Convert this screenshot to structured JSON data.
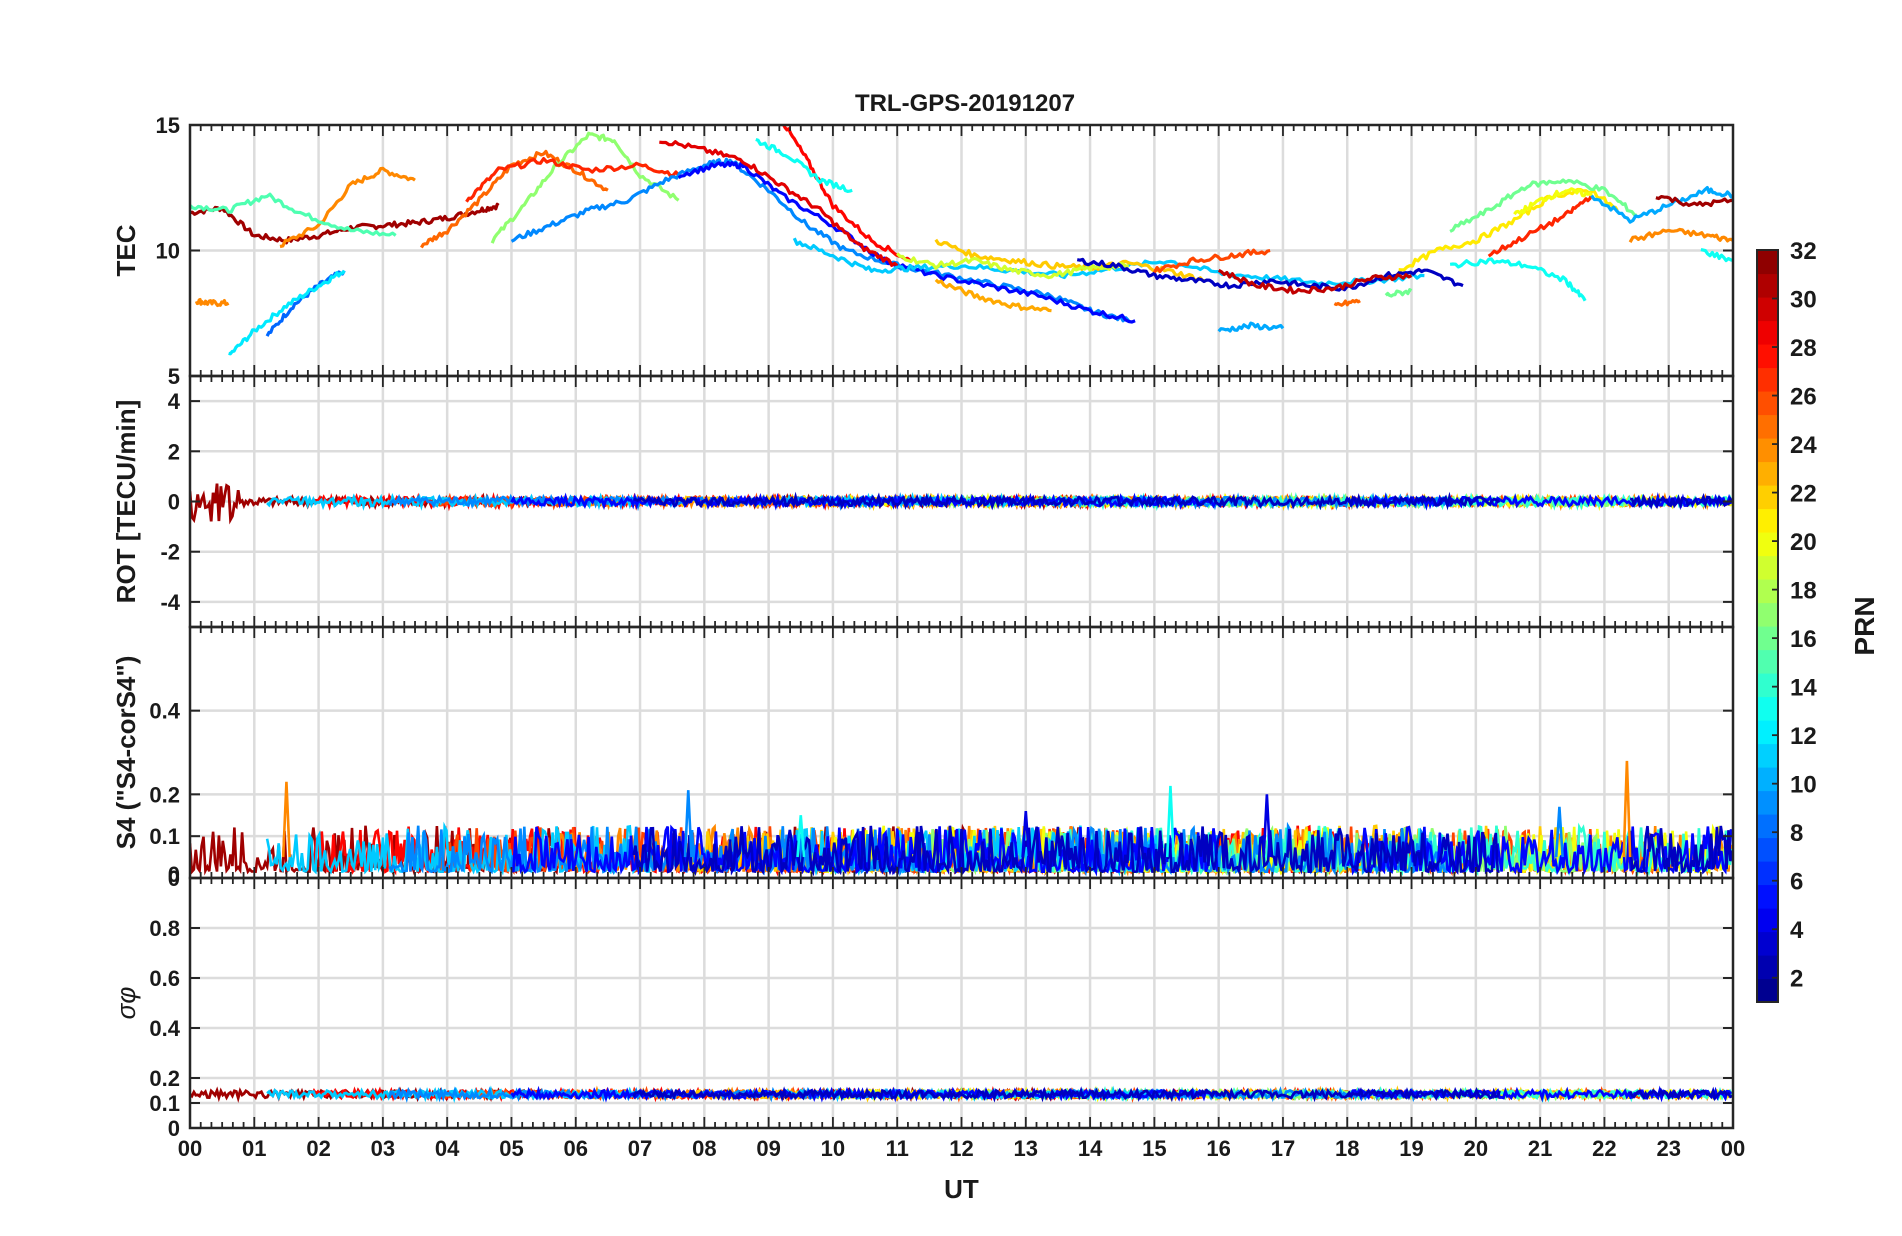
{
  "figure": {
    "title": "TRL-GPS-20191207"
  },
  "chart_data": [
    {
      "type": "line",
      "panel": "tec",
      "title": "TRL-GPS-20191207",
      "xlabel": "",
      "ylabel": "TEC",
      "xlim": [
        0,
        24
      ],
      "ylim": [
        5,
        15
      ],
      "yticks": [
        "5",
        "10",
        "15"
      ],
      "grid": true,
      "series": [
        {
          "name": "PRN 31",
          "prn": 31,
          "x": [
            0,
            0.5,
            1,
            1.5,
            2,
            2.5,
            3,
            3.5,
            4,
            4.5,
            4.8
          ],
          "y": [
            11.5,
            11.7,
            10.6,
            10.4,
            10.6,
            10.9,
            11.0,
            11.1,
            11.3,
            11.6,
            11.8
          ]
        },
        {
          "name": "PRN 8",
          "prn": 8,
          "x": [
            1.2,
            1.6,
            2,
            2.4
          ],
          "y": [
            6.6,
            7.8,
            8.6,
            9.2
          ]
        },
        {
          "name": "PRN 12",
          "prn": 12,
          "x": [
            0.6,
            1.0,
            1.5,
            2.0,
            2.4
          ],
          "y": [
            5.8,
            6.8,
            7.8,
            8.6,
            9.2
          ]
        },
        {
          "name": "PRN 24",
          "prn": 24,
          "x": [
            0.1,
            0.3,
            0.6
          ],
          "y": [
            8.0,
            7.9,
            7.9
          ]
        },
        {
          "name": "PRN 24b",
          "prn": 24,
          "x": [
            1.4,
            2,
            2.5,
            3,
            3.5
          ],
          "y": [
            10.2,
            11.0,
            12.6,
            13.2,
            12.8
          ]
        },
        {
          "name": "PRN 15",
          "prn": 15,
          "x": [
            0,
            0.6,
            1.2,
            1.8,
            2.5,
            3.2
          ],
          "y": [
            11.8,
            11.6,
            12.2,
            11.4,
            10.8,
            10.6
          ]
        },
        {
          "name": "PRN 25",
          "prn": 25,
          "x": [
            3.6,
            4,
            4.5,
            5,
            5.5,
            6.0,
            6.5
          ],
          "y": [
            10.2,
            10.8,
            12.0,
            13.4,
            13.9,
            13.2,
            12.4
          ]
        },
        {
          "name": "PRN 17",
          "prn": 17,
          "x": [
            4.7,
            5.2,
            5.7,
            6.2,
            6.6,
            7.0,
            7.6
          ],
          "y": [
            10.4,
            11.8,
            13.4,
            14.6,
            14.4,
            13.0,
            12.0
          ]
        },
        {
          "name": "PRN 27",
          "prn": 27,
          "x": [
            4.3,
            4.8,
            5.5,
            6.2,
            7.0,
            7.6
          ],
          "y": [
            12.0,
            13.2,
            13.6,
            13.2,
            13.4,
            13.0
          ]
        },
        {
          "name": "PRN 9",
          "prn": 9,
          "x": [
            5.0,
            5.6,
            6.2,
            6.8,
            7.4,
            8.0,
            8.4,
            9.0,
            9.6,
            10.2,
            11,
            11.8,
            12.6,
            13.4,
            14.0,
            14.6
          ],
          "y": [
            10.4,
            11.0,
            11.6,
            12.0,
            12.8,
            13.4,
            13.6,
            12.4,
            11.0,
            10.0,
            9.4,
            9.0,
            8.6,
            8.2,
            7.6,
            7.2
          ]
        },
        {
          "name": "PRN 5",
          "prn": 5,
          "x": [
            7.6,
            8.2,
            8.6,
            9.2,
            10,
            10.8,
            11.6,
            12.4,
            13.2,
            14.0,
            14.7
          ],
          "y": [
            13.0,
            13.4,
            13.4,
            12.2,
            11.0,
            9.6,
            9.0,
            8.6,
            8.2,
            7.6,
            7.2
          ]
        },
        {
          "name": "PRN 29",
          "prn": 29,
          "x": [
            7.3,
            8.0,
            8.6,
            9.2,
            9.8,
            10.4,
            11.0
          ],
          "y": [
            14.4,
            14.0,
            13.6,
            12.6,
            11.6,
            10.2,
            9.4
          ]
        },
        {
          "name": "PRN 28",
          "prn": 28,
          "x": [
            9.2,
            9.6,
            10.0,
            10.6,
            11.2
          ],
          "y": [
            15.2,
            13.6,
            11.8,
            10.4,
            9.6
          ]
        },
        {
          "name": "PRN 13",
          "prn": 13,
          "x": [
            8.8,
            9.3,
            9.8,
            10.3
          ],
          "y": [
            14.4,
            13.8,
            12.8,
            12.4
          ]
        },
        {
          "name": "PRN 11",
          "prn": 11,
          "x": [
            9.4,
            10,
            10.6,
            11.2,
            12,
            12.8,
            13.6,
            14.4,
            15.2,
            16,
            16.8,
            17.6,
            18.4,
            19.2
          ],
          "y": [
            10.4,
            9.8,
            9.2,
            9.3,
            9.4,
            9.2,
            9.0,
            9.3,
            9.6,
            9.1,
            8.9,
            8.7,
            8.8,
            9.0
          ]
        },
        {
          "name": "PRN 22",
          "prn": 22,
          "x": [
            11.6,
            12.2,
            12.8,
            13.4,
            14.0,
            14.6,
            15.2,
            15.8
          ],
          "y": [
            10.4,
            9.8,
            9.6,
            9.4,
            9.3,
            9.5,
            9.2,
            8.8
          ]
        },
        {
          "name": "PRN 23",
          "prn": 23,
          "x": [
            11.6,
            12.2,
            12.8,
            13.4
          ],
          "y": [
            8.8,
            8.2,
            7.8,
            7.6
          ]
        },
        {
          "name": "PRN 19",
          "prn": 19,
          "x": [
            11,
            11.6,
            12.2,
            12.8,
            13.4,
            14.0,
            14.6
          ],
          "y": [
            9.8,
            9.4,
            9.6,
            9.2,
            9.0,
            9.3,
            9.4
          ]
        },
        {
          "name": "PRN 3",
          "prn": 3,
          "x": [
            13.8,
            14.4,
            15.0,
            15.6,
            16.2,
            16.8,
            17.4,
            18.0,
            18.6,
            19.2,
            19.8
          ],
          "y": [
            9.6,
            9.4,
            9.0,
            8.8,
            8.6,
            8.8,
            8.6,
            8.5,
            9.0,
            9.2,
            8.6
          ]
        },
        {
          "name": "PRN 26",
          "prn": 26,
          "x": [
            15.0,
            15.6,
            16.2,
            16.8
          ],
          "y": [
            9.2,
            9.6,
            9.8,
            10.0
          ]
        },
        {
          "name": "PRN 30",
          "prn": 30,
          "x": [
            16.0,
            16.6,
            17.2,
            17.8,
            18.4,
            19.0
          ],
          "y": [
            9.2,
            8.6,
            8.4,
            8.5,
            8.9,
            9.0
          ]
        },
        {
          "name": "PRN 10",
          "prn": 10,
          "x": [
            16.0,
            16.5,
            17.0
          ],
          "y": [
            6.8,
            7.0,
            6.9
          ]
        },
        {
          "name": "PRN 25b",
          "prn": 25,
          "x": [
            17.8,
            18.2
          ],
          "y": [
            7.8,
            8.0
          ]
        },
        {
          "name": "PRN 16",
          "prn": 16,
          "x": [
            18.6,
            19.0
          ],
          "y": [
            8.2,
            8.4
          ]
        },
        {
          "name": "PRN 21",
          "prn": 21,
          "x": [
            18.8,
            19.4,
            20.0,
            20.6,
            21.2,
            21.8,
            22.2
          ],
          "y": [
            9.2,
            10.0,
            10.4,
            11.2,
            12.2,
            12.4,
            11.6
          ]
        },
        {
          "name": "PRN 13b",
          "prn": 13,
          "x": [
            19.6,
            20.2,
            20.8,
            21.4,
            21.7
          ],
          "y": [
            9.4,
            9.6,
            9.4,
            8.8,
            8.0
          ]
        },
        {
          "name": "PRN 16b",
          "prn": 16,
          "x": [
            19.6,
            20.2,
            20.8,
            21.4,
            22.0,
            22.5
          ],
          "y": [
            10.8,
            11.6,
            12.6,
            12.8,
            12.4,
            11.4
          ]
        },
        {
          "name": "PRN 27b",
          "prn": 27,
          "x": [
            20.2,
            20.8,
            21.4,
            21.8
          ],
          "y": [
            9.8,
            10.6,
            11.4,
            12.2
          ]
        },
        {
          "name": "PRN 20",
          "prn": 20,
          "x": [
            20.6,
            21.0,
            21.4,
            21.8
          ],
          "y": [
            11.4,
            12.0,
            12.4,
            12.2
          ]
        },
        {
          "name": "PRN 10b",
          "prn": 10,
          "x": [
            21.8,
            22.4,
            23.0,
            23.6,
            24
          ],
          "y": [
            12.2,
            11.2,
            11.8,
            12.4,
            12.2
          ]
        },
        {
          "name": "PRN 24c",
          "prn": 24,
          "x": [
            22.4,
            23.0,
            23.6,
            24
          ],
          "y": [
            10.4,
            10.8,
            10.6,
            10.4
          ]
        },
        {
          "name": "PRN 31b",
          "prn": 31,
          "x": [
            22.8,
            23.4,
            24
          ],
          "y": [
            12.2,
            11.8,
            12.0
          ]
        },
        {
          "name": "PRN 13c",
          "prn": 13,
          "x": [
            23.5,
            24
          ],
          "y": [
            10.0,
            9.6
          ]
        }
      ]
    },
    {
      "type": "line",
      "panel": "rot",
      "ylabel": "ROT [TECU/min]",
      "xlim": [
        0,
        24
      ],
      "ylim": [
        -5,
        5
      ],
      "yticks": [
        "-4",
        "-2",
        "0",
        "2",
        "4"
      ],
      "grid": true,
      "note": "ROT traces of all PRNs stay within about ±0.5 TECU/min, with a spike near 1 TECU/min at 00:30"
    },
    {
      "type": "line",
      "panel": "s4",
      "ylabel": "S4 (\"S4-corS4\")",
      "xlim": [
        0,
        24
      ],
      "ylim": [
        0,
        0.6
      ],
      "yticks": [
        "0",
        "0",
        "0.1",
        "0.2",
        "0.4"
      ],
      "grid": true,
      "note": "S4 mostly 0.02–0.12; peaks ≈0.23 at 01:30, ≈0.21 at 07:45, ≈0.22 at 15:15, ≈0.20 at 16:45, ≈0.28 at 22:20"
    },
    {
      "type": "line",
      "panel": "sigma_phi",
      "ylabel": "σφ",
      "xlabel": "UT",
      "xlim": [
        0,
        24
      ],
      "ylim": [
        0,
        1
      ],
      "yticks": [
        "0",
        "0.1",
        "0.2",
        "0.4",
        "0.6",
        "0.8"
      ],
      "xticks": [
        "00",
        "01",
        "02",
        "03",
        "04",
        "05",
        "06",
        "07",
        "08",
        "09",
        "10",
        "11",
        "12",
        "13",
        "14",
        "15",
        "16",
        "17",
        "18",
        "19",
        "20",
        "21",
        "22",
        "23",
        "00"
      ],
      "grid": true,
      "note": "σφ stays at about 0.12–0.15 all day"
    }
  ],
  "colorbar": {
    "label": "PRN",
    "min": 1,
    "max": 32,
    "ticks": [
      "2",
      "4",
      "6",
      "8",
      "10",
      "12",
      "14",
      "16",
      "18",
      "20",
      "22",
      "24",
      "26",
      "28",
      "30",
      "32"
    ]
  },
  "colors": {
    "axis": "#262626",
    "grid": "#dcdcdc"
  }
}
